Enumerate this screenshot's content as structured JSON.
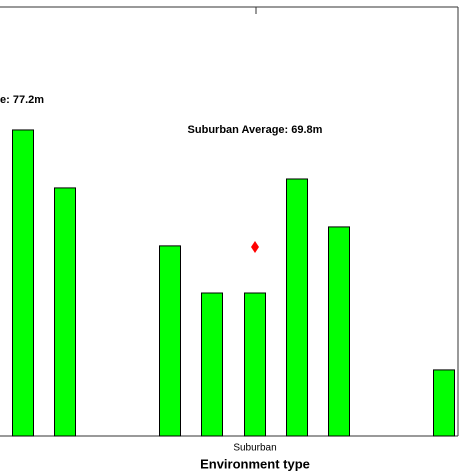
{
  "chart_data": {
    "type": "bar",
    "xlabel": "Environment type",
    "categories": [
      null,
      null,
      null,
      null,
      "Suburban",
      null,
      null,
      null
    ],
    "values": [
      113.0,
      91.6,
      70.2,
      52.8,
      52.8,
      94.9,
      77.2,
      24.4
    ],
    "color": "#00ff00",
    "ylim": [
      0,
      158.4
    ],
    "annotations": [
      "e: 77.2m",
      "Suburban Average: 69.8m"
    ],
    "average_marker": {
      "value": 69.8,
      "color": "#ff0000"
    }
  }
}
